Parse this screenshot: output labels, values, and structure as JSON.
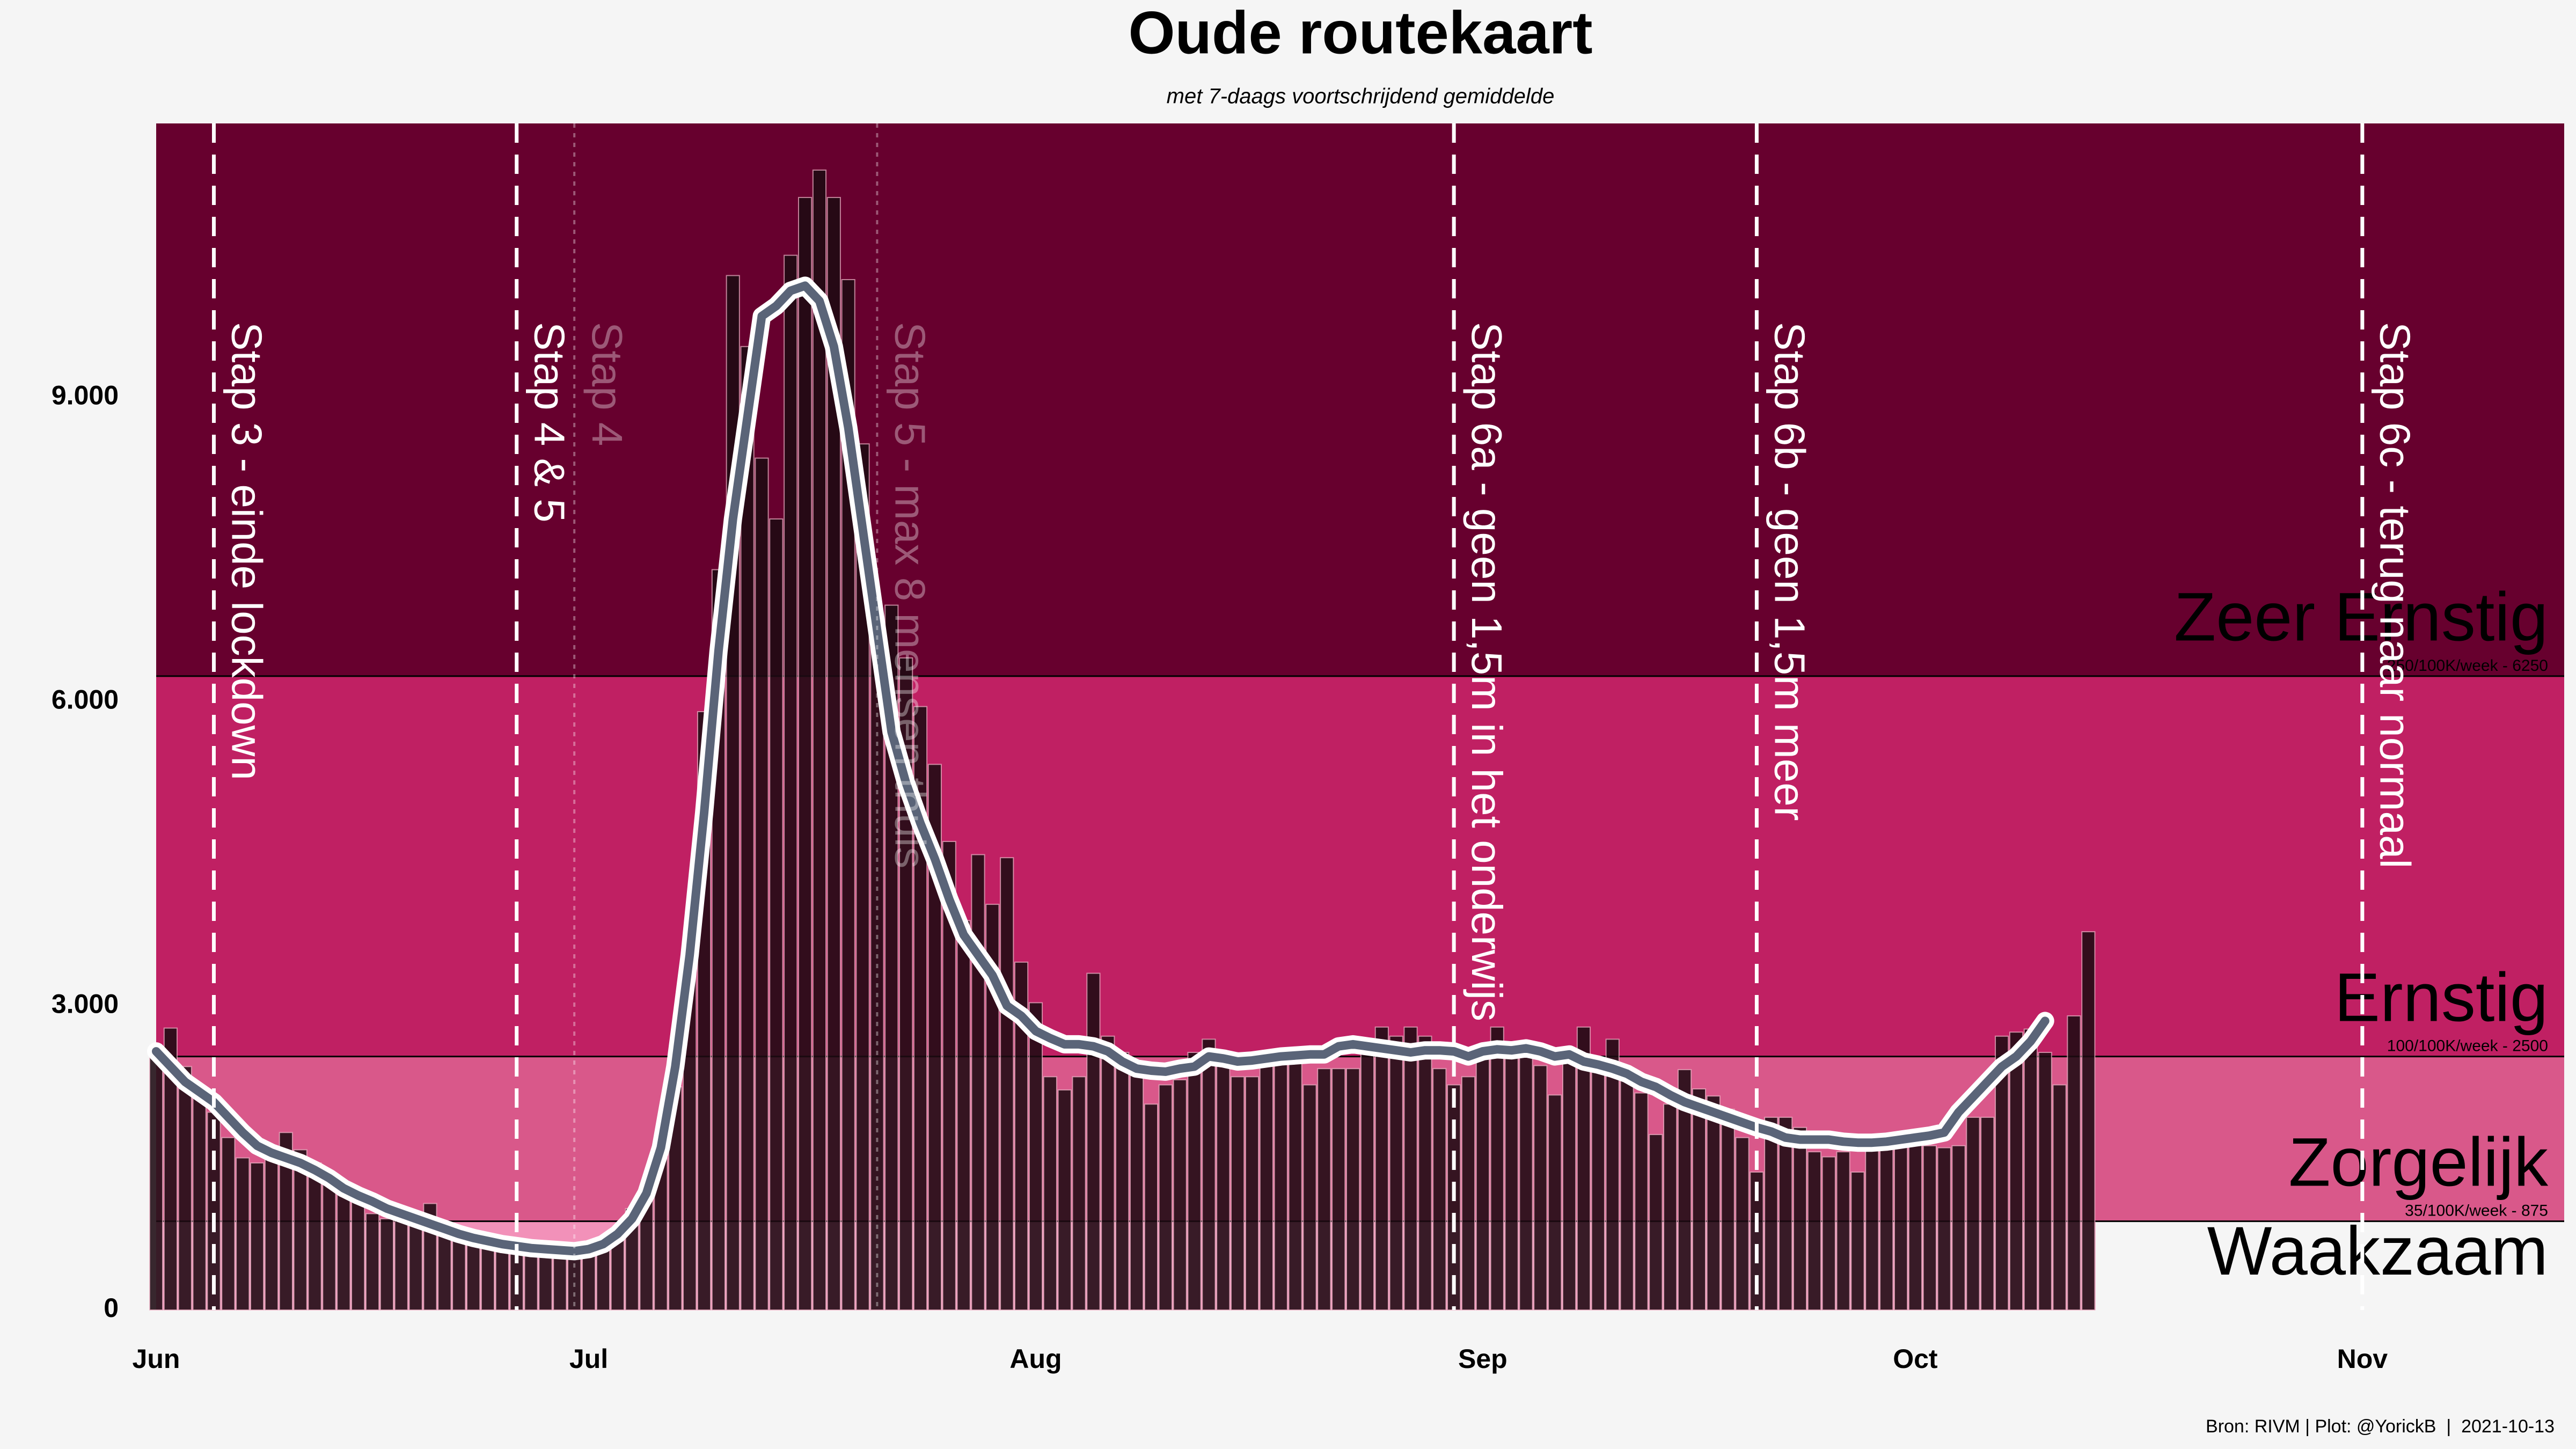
{
  "chart_data": {
    "type": "bar",
    "title": "Oude routekaart",
    "subtitle": "met 7-daags voortschrijdend gemiddelde",
    "source": "Bron: RIVM | Plot: @YorickB  |  2021-10-13",
    "xlim": [
      0,
      167
    ],
    "ylim": [
      0,
      11700
    ],
    "xticks": [
      {
        "value": 0,
        "label": "Jun"
      },
      {
        "value": 30,
        "label": "Jul"
      },
      {
        "value": 61,
        "label": "Aug"
      },
      {
        "value": 92,
        "label": "Sep"
      },
      {
        "value": 122,
        "label": "Oct"
      },
      {
        "value": 153,
        "label": "Nov"
      }
    ],
    "yticks": [
      0,
      {
        "value": 3000,
        "label": "3.000"
      },
      {
        "value": 6000,
        "label": "6.000"
      },
      {
        "value": 9000,
        "label": "9.000"
      }
    ],
    "bands": [
      {
        "name": "Waakzaam",
        "color": "#f291b9"
      },
      {
        "name": "Zorgelijk",
        "color": "#d9588a"
      },
      {
        "name": "Ernstig",
        "color": "#c02063"
      },
      {
        "name": "Zeer Ernstig",
        "color": "#67002e"
      }
    ],
    "thresholds": [
      {
        "value": 875,
        "label": "35/100K/week - 875"
      },
      {
        "value": 2500,
        "label": "100/100K/week - 2500"
      },
      {
        "value": 6250,
        "label": "250/100K/week - 6250"
      }
    ],
    "events": [
      {
        "x": 4,
        "label": "Stap 3 - einde lockdown",
        "style": "dashed"
      },
      {
        "x": 25,
        "label": "Stap 4 & 5",
        "style": "dashed"
      },
      {
        "x": 29,
        "label": "Stap 4",
        "style": "faded"
      },
      {
        "x": 50,
        "label": "Stap 5 - max 8 mensen thuis",
        "style": "faded"
      },
      {
        "x": 90,
        "label": "Stap 6a - geen 1,5m in het onderwijs",
        "style": "dashed"
      },
      {
        "x": 111,
        "label": "Stap 6b - geen 1,5m meer",
        "style": "dashed"
      },
      {
        "x": 153,
        "label": "Stap 6c - terug naar normaal",
        "style": "dashed"
      }
    ],
    "x": [
      0,
      1,
      2,
      3,
      4,
      5,
      6,
      7,
      8,
      9,
      10,
      11,
      12,
      13,
      14,
      15,
      16,
      17,
      18,
      19,
      20,
      21,
      22,
      23,
      24,
      25,
      26,
      27,
      28,
      29,
      30,
      31,
      32,
      33,
      34,
      35,
      36,
      37,
      38,
      39,
      40,
      41,
      42,
      43,
      44,
      45,
      46,
      47,
      48,
      49,
      50,
      51,
      52,
      53,
      54,
      55,
      56,
      57,
      58,
      59,
      60,
      61,
      62,
      63,
      64,
      65,
      66,
      67,
      68,
      69,
      70,
      71,
      72,
      73,
      74,
      75,
      76,
      77,
      78,
      79,
      80,
      81,
      82,
      83,
      84,
      85,
      86,
      87,
      88,
      89,
      90,
      91,
      92,
      93,
      94,
      95,
      96,
      97,
      98,
      99,
      100,
      101,
      102,
      103,
      104,
      105,
      106,
      107,
      108,
      109,
      110,
      111,
      112,
      113,
      114,
      115,
      116,
      117,
      118,
      119,
      120,
      121,
      122,
      123,
      124,
      125,
      126,
      127,
      128,
      129,
      130,
      131,
      132,
      133,
      134
    ],
    "series": [
      {
        "type": "bar",
        "color": "#1e0a12",
        "values": [
          2600,
          2780,
          2400,
          2100,
          1950,
          1700,
          1500,
          1450,
          1500,
          1750,
          1580,
          1450,
          1350,
          1250,
          1100,
          950,
          900,
          880,
          900,
          1050,
          850,
          750,
          700,
          620,
          650,
          600,
          620,
          600,
          580,
          570,
          560,
          600,
          750,
          1000,
          1200,
          1500,
          2200,
          3600,
          5900,
          7300,
          10200,
          9500,
          8400,
          7800,
          10400,
          10970,
          11240,
          10970,
          10160,
          8540,
          6790,
          6950,
          6430,
          5950,
          5380,
          4620,
          3840,
          4490,
          4000,
          4460,
          3430,
          3030,
          2300,
          2170,
          2300,
          3320,
          2700,
          2540,
          2380,
          2030,
          2220,
          2270,
          2540,
          2670,
          2410,
          2300,
          2300,
          2430,
          2540,
          2460,
          2220,
          2380,
          2380,
          2380,
          2540,
          2790,
          2700,
          2790,
          2700,
          2380,
          2220,
          2300,
          2540,
          2790,
          2540,
          2620,
          2410,
          2120,
          2460,
          2790,
          2380,
          2670,
          2300,
          2140,
          1730,
          2030,
          2370,
          2180,
          2110,
          1980,
          1700,
          1360,
          1900,
          1900,
          1800,
          1560,
          1510,
          1560,
          1360,
          1620,
          1730,
          1700,
          1700,
          1620,
          1600,
          1620,
          1900,
          1900,
          2700,
          2740,
          2770,
          2540,
          2220,
          2900,
          3730
        ]
      },
      {
        "type": "line",
        "color": "#5a6478",
        "values": [
          2550,
          2400,
          2250,
          2150,
          2050,
          1900,
          1750,
          1620,
          1550,
          1500,
          1450,
          1380,
          1300,
          1200,
          1130,
          1070,
          1000,
          950,
          900,
          850,
          800,
          750,
          710,
          680,
          650,
          630,
          610,
          600,
          590,
          580,
          600,
          650,
          750,
          900,
          1150,
          1600,
          2400,
          3500,
          4900,
          6500,
          7800,
          8800,
          9800,
          9900,
          10050,
          10100,
          9950,
          9500,
          8700,
          7700,
          6700,
          5700,
          5200,
          4800,
          4450,
          4050,
          3700,
          3500,
          3300,
          3000,
          2900,
          2750,
          2680,
          2620,
          2620,
          2600,
          2550,
          2450,
          2380,
          2360,
          2350,
          2380,
          2400,
          2500,
          2480,
          2450,
          2460,
          2480,
          2500,
          2510,
          2520,
          2520,
          2600,
          2620,
          2600,
          2580,
          2560,
          2540,
          2560,
          2560,
          2550,
          2500,
          2550,
          2570,
          2560,
          2580,
          2550,
          2500,
          2520,
          2450,
          2420,
          2380,
          2330,
          2250,
          2200,
          2120,
          2050,
          2000,
          1950,
          1900,
          1850,
          1800,
          1760,
          1700,
          1680,
          1680,
          1680,
          1660,
          1650,
          1650,
          1660,
          1680,
          1700,
          1720,
          1750,
          1950,
          2100,
          2250,
          2400,
          2500,
          2650,
          2850,
          null,
          null,
          null
        ]
      }
    ]
  }
}
